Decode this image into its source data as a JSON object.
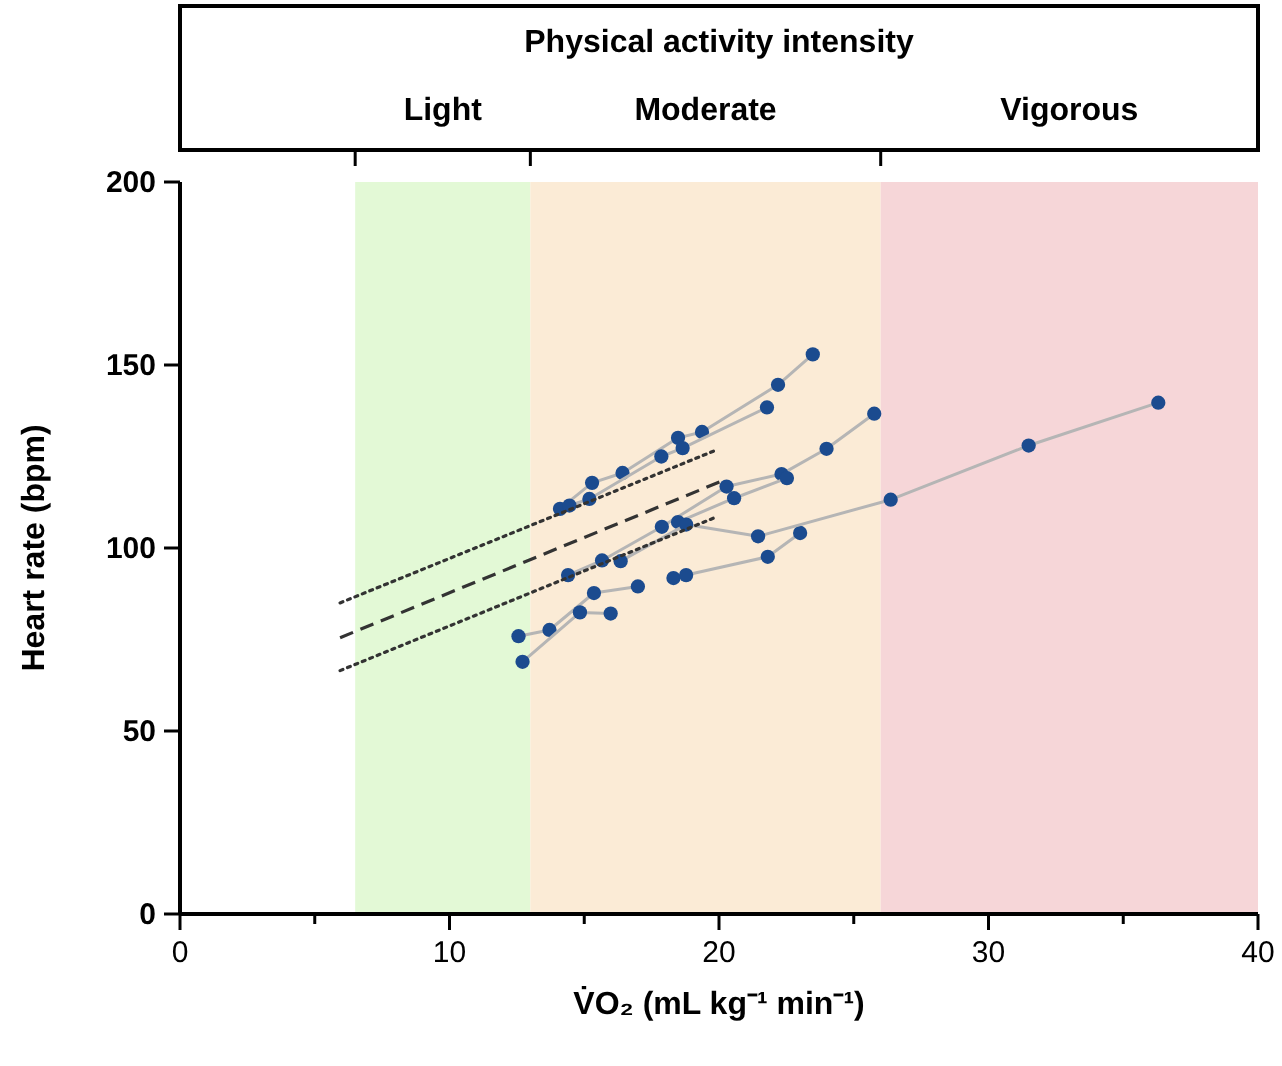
{
  "chart_data": {
    "type": "line",
    "title": "Physical activity intensity",
    "xlabel": "V̇O₂ (mL kg⁻¹ min⁻¹)",
    "ylabel": "Heart rate (bpm)",
    "xlim": [
      0,
      40
    ],
    "ylim": [
      0,
      200
    ],
    "xticks": [
      0,
      {
        "value": 5,
        "label": null
      },
      10,
      {
        "value": 15,
        "label": null
      },
      20,
      {
        "value": 25,
        "label": null
      },
      30,
      {
        "value": 35,
        "label": null
      },
      40
    ],
    "yticks": [
      0,
      50,
      100,
      150,
      200
    ],
    "grid": false,
    "marker": "circle",
    "line_style": "solid",
    "bands": [
      {
        "axis": "x",
        "from": 6.5,
        "to": 13,
        "label": "Light",
        "color": "#e3f9d6"
      },
      {
        "axis": "x",
        "from": 13,
        "to": 26,
        "label": "Moderate",
        "color": "#fbebd6"
      },
      {
        "axis": "x",
        "from": 26,
        "to": 40,
        "label": "Vigorous",
        "color": "#f6d6d8"
      }
    ],
    "series": [
      {
        "color": "#1b4b8f",
        "x": [
          12.56,
          13.71,
          15.36,
          16.99
        ],
        "values": [
          75.9,
          77.6,
          87.7,
          89.5
        ]
      },
      {
        "color": "#1b4b8f",
        "x": [
          12.71,
          14.84,
          15.98
        ],
        "values": [
          68.9,
          82.4,
          82.1
        ]
      },
      {
        "color": "#1b4b8f",
        "x": [
          14.4,
          15.66,
          17.88,
          20.28,
          22.32,
          23.99,
          25.76
        ],
        "values": [
          92.6,
          96.6,
          105.8,
          116.8,
          120.2,
          127.1,
          136.7
        ]
      },
      {
        "color": "#1b4b8f",
        "x": [
          18.48,
          20.56,
          22.52
        ],
        "values": [
          107.1,
          113.6,
          119.1
        ]
      },
      {
        "color": "#1b4b8f",
        "x": [
          18.31,
          18.78,
          21.81,
          23.01
        ],
        "values": [
          91.8,
          92.6,
          97.6,
          104.1
        ]
      },
      {
        "color": "#1b4b8f",
        "x": [
          16.35,
          18.78,
          21.45,
          26.37,
          31.49,
          36.3
        ],
        "values": [
          96.4,
          106.4,
          103.2,
          113.2,
          128.0,
          139.7
        ]
      },
      {
        "color": "#1b4b8f",
        "x": [
          14.1,
          15.29,
          16.42,
          18.48,
          19.37,
          22.19,
          23.48
        ],
        "values": [
          110.7,
          117.8,
          120.5,
          130.1,
          131.7,
          144.6,
          152.9
        ]
      },
      {
        "color": "#1b4b8f",
        "x": [
          14.45,
          15.19,
          17.86,
          18.65,
          21.78
        ],
        "values": [
          111.6,
          113.4,
          125.0,
          127.3,
          138.4
        ]
      },
      {
        "type": "line",
        "color": "#333333",
        "marker": "none",
        "line_style": "dashed",
        "x": [
          5.94,
          20.04
        ],
        "values": [
          75.5,
          118.1
        ]
      },
      {
        "type": "line",
        "color": "#333333",
        "marker": "none",
        "line_style": "dotted",
        "x": [
          5.94,
          19.91
        ],
        "values": [
          85.0,
          126.8
        ]
      },
      {
        "type": "line",
        "color": "#333333",
        "marker": "none",
        "line_style": "dotted",
        "x": [
          5.94,
          19.91
        ],
        "values": [
          66.5,
          108.5
        ]
      }
    ]
  }
}
